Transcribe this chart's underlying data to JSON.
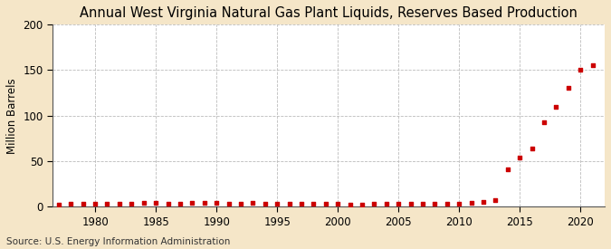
{
  "title": "Annual West Virginia Natural Gas Plant Liquids, Reserves Based Production",
  "ylabel": "Million Barrels",
  "source": "Source: U.S. Energy Information Administration",
  "background_color": "#f5e6c8",
  "plot_bg_color": "#ffffff",
  "marker_color": "#cc0000",
  "years": [
    1977,
    1978,
    1979,
    1980,
    1981,
    1982,
    1983,
    1984,
    1985,
    1986,
    1987,
    1988,
    1989,
    1990,
    1991,
    1992,
    1993,
    1994,
    1995,
    1996,
    1997,
    1998,
    1999,
    2000,
    2001,
    2002,
    2003,
    2004,
    2005,
    2006,
    2007,
    2008,
    2009,
    2010,
    2011,
    2012,
    2013,
    2014,
    2015,
    2016,
    2017,
    2018,
    2019,
    2020,
    2021
  ],
  "values": [
    2.5,
    2.8,
    3.0,
    3.2,
    3.5,
    3.2,
    3.5,
    4.0,
    4.2,
    3.5,
    3.2,
    3.8,
    4.5,
    4.2,
    3.5,
    3.2,
    3.8,
    3.2,
    3.0,
    3.0,
    3.2,
    3.0,
    2.8,
    2.8,
    2.5,
    2.5,
    2.8,
    2.8,
    2.8,
    2.8,
    2.8,
    2.8,
    3.0,
    3.5,
    4.0,
    5.0,
    7.0,
    40.5,
    54.0,
    64.0,
    93.0,
    110.0,
    131.0,
    150.0,
    155.0
  ],
  "xlim": [
    1976.5,
    2022
  ],
  "ylim": [
    0,
    200
  ],
  "yticks": [
    0,
    50,
    100,
    150,
    200
  ],
  "xticks": [
    1980,
    1985,
    1990,
    1995,
    2000,
    2005,
    2010,
    2015,
    2020
  ],
  "grid_color": "#bbbbbb",
  "title_fontsize": 10.5,
  "label_fontsize": 8.5,
  "tick_fontsize": 8.5,
  "source_fontsize": 7.5
}
